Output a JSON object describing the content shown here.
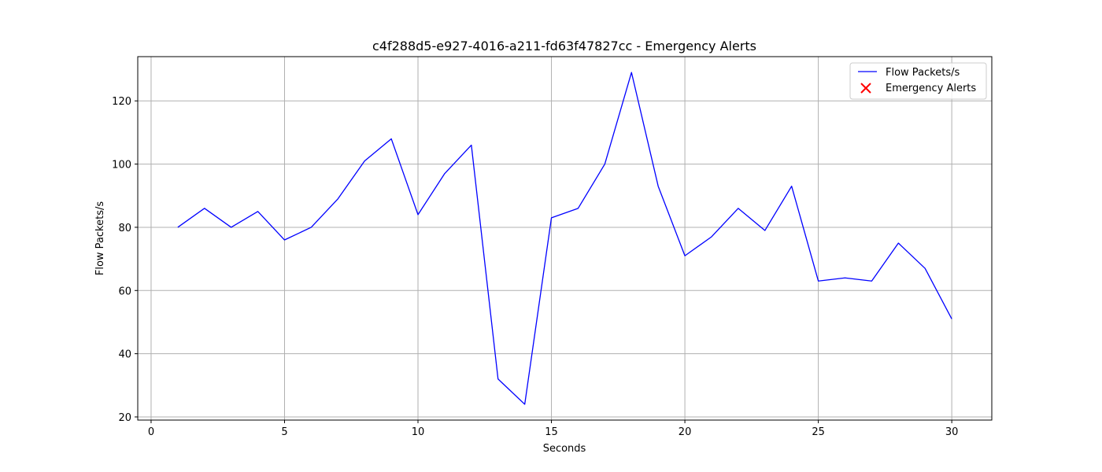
{
  "chart_data": {
    "type": "line",
    "title": "c4f288d5-e927-4016-a211-fd63f47827cc - Emergency Alerts",
    "xlabel": "Seconds",
    "ylabel": "Flow Packets/s",
    "xlim": [
      -0.5,
      31.5
    ],
    "ylim": [
      19,
      134
    ],
    "xticks": [
      0,
      5,
      10,
      15,
      20,
      25,
      30
    ],
    "yticks": [
      20,
      40,
      60,
      80,
      100,
      120
    ],
    "grid": true,
    "legend_position": "top-right",
    "series": [
      {
        "name": "Flow Packets/s",
        "color": "#0000ff",
        "x": [
          1,
          2,
          3,
          4,
          5,
          6,
          7,
          8,
          9,
          10,
          11,
          12,
          13,
          14,
          15,
          16,
          17,
          18,
          19,
          20,
          21,
          22,
          23,
          24,
          25,
          26,
          27,
          28,
          29,
          30
        ],
        "y": [
          80,
          86,
          80,
          85,
          76,
          80,
          89,
          101,
          108,
          84,
          97,
          106,
          32,
          24,
          83,
          86,
          100,
          129,
          93,
          71,
          77,
          86,
          79,
          93,
          63,
          64,
          63,
          75,
          67,
          51
        ]
      }
    ],
    "alerts": {
      "name": "Emergency Alerts",
      "color": "#ff0000",
      "marker": "x",
      "x": [],
      "y": []
    }
  }
}
